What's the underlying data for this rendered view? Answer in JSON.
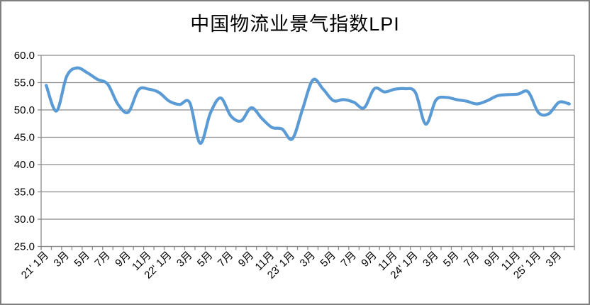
{
  "chart_data": {
    "type": "line",
    "title": "中国物流业景气指数LPI",
    "smoothed": true,
    "grid": true,
    "legend": "none",
    "xlabel": "",
    "ylabel": "",
    "ylim": [
      25,
      60
    ],
    "ytick_step": 5,
    "y_tick_labels": [
      "60.0",
      "55.0",
      "50.0",
      "45.0",
      "40.0",
      "35.0",
      "30.0",
      "25.0"
    ],
    "x_tick_labels": [
      "21' 1月",
      "3月",
      "5月",
      "7月",
      "9月",
      "11月",
      "22' 1月",
      "3月",
      "5月",
      "7月",
      "9月",
      "11月",
      "23' 1月",
      "3月",
      "5月",
      "7月",
      "9月",
      "11月",
      "24' 1月",
      "3月",
      "5月",
      "7月",
      "9月",
      "11月",
      "25' 1月",
      "3月"
    ],
    "x": [
      "2021-01",
      "2021-02",
      "2021-03",
      "2021-04",
      "2021-05",
      "2021-06",
      "2021-07",
      "2021-08",
      "2021-09",
      "2021-10",
      "2021-11",
      "2021-12",
      "2022-01",
      "2022-02",
      "2022-03",
      "2022-04",
      "2022-05",
      "2022-06",
      "2022-07",
      "2022-08",
      "2022-09",
      "2022-10",
      "2022-11",
      "2022-12",
      "2023-01",
      "2023-02",
      "2023-03",
      "2023-04",
      "2023-05",
      "2023-06",
      "2023-07",
      "2023-08",
      "2023-09",
      "2023-10",
      "2023-11",
      "2023-12",
      "2024-01",
      "2024-02",
      "2024-03",
      "2024-04",
      "2024-05",
      "2024-06",
      "2024-07",
      "2024-08",
      "2024-09",
      "2024-10",
      "2024-11",
      "2024-12",
      "2025-01",
      "2025-02",
      "2025-03",
      "2025-04"
    ],
    "series": [
      {
        "name": "LPI",
        "values": [
          54.5,
          49.8,
          56.2,
          57.7,
          56.8,
          55.6,
          54.7,
          51.0,
          49.6,
          53.7,
          53.8,
          53.2,
          51.6,
          51.0,
          51.3,
          43.9,
          49.4,
          52.2,
          48.9,
          48.0,
          50.4,
          48.5,
          46.8,
          46.5,
          44.7,
          50.2,
          55.5,
          53.8,
          51.7,
          51.9,
          51.4,
          50.4,
          53.9,
          53.3,
          53.8,
          53.9,
          53.2,
          47.4,
          51.8,
          52.3,
          51.9,
          51.6,
          51.1,
          51.7,
          52.6,
          52.8,
          52.9,
          53.3,
          49.5,
          49.3,
          51.4,
          51.1
        ]
      }
    ],
    "colors": {
      "line": "#5B9BD5",
      "gridline": "#8C8C8C",
      "axis": "#8C8C8C",
      "text": "#000000",
      "frame_border": "#7F7F7F",
      "background": "#FFFFFF"
    }
  }
}
